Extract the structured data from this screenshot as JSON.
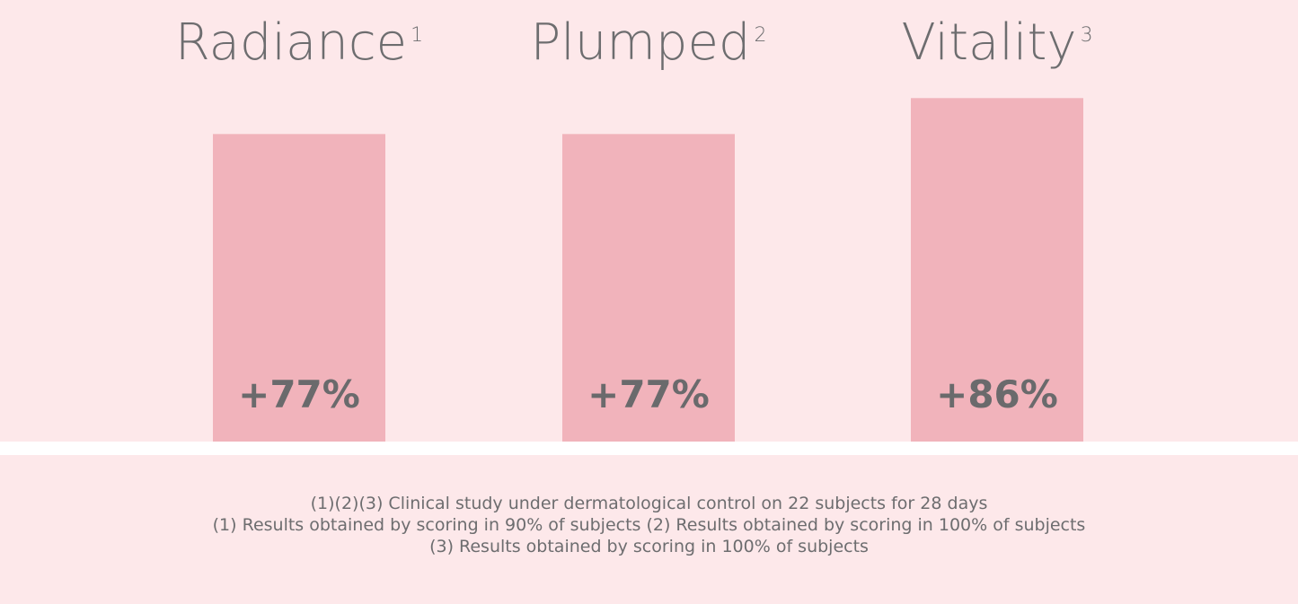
{
  "chart_data": {
    "type": "bar",
    "categories": [
      "Radiance",
      "Plumped",
      "Vitality"
    ],
    "superscripts": [
      "1",
      "2",
      "3"
    ],
    "values": [
      77,
      77,
      86
    ],
    "value_labels": [
      "+77%",
      "+77%",
      "+86%"
    ],
    "ylim": [
      0,
      100
    ],
    "grid": false,
    "legend": "none",
    "bar_color": "#f1b3bb",
    "background_color": "#fde8ea",
    "text_color": "#6d6d6f"
  },
  "footnotes": [
    "(1)(2)(3) Clinical study under dermatological control on 22 subjects for 28 days",
    "(1) Results obtained by scoring in 90% of subjects (2) Results obtained by scoring in 100% of subjects",
    "(3) Results obtained by scoring in 100% of subjects"
  ]
}
